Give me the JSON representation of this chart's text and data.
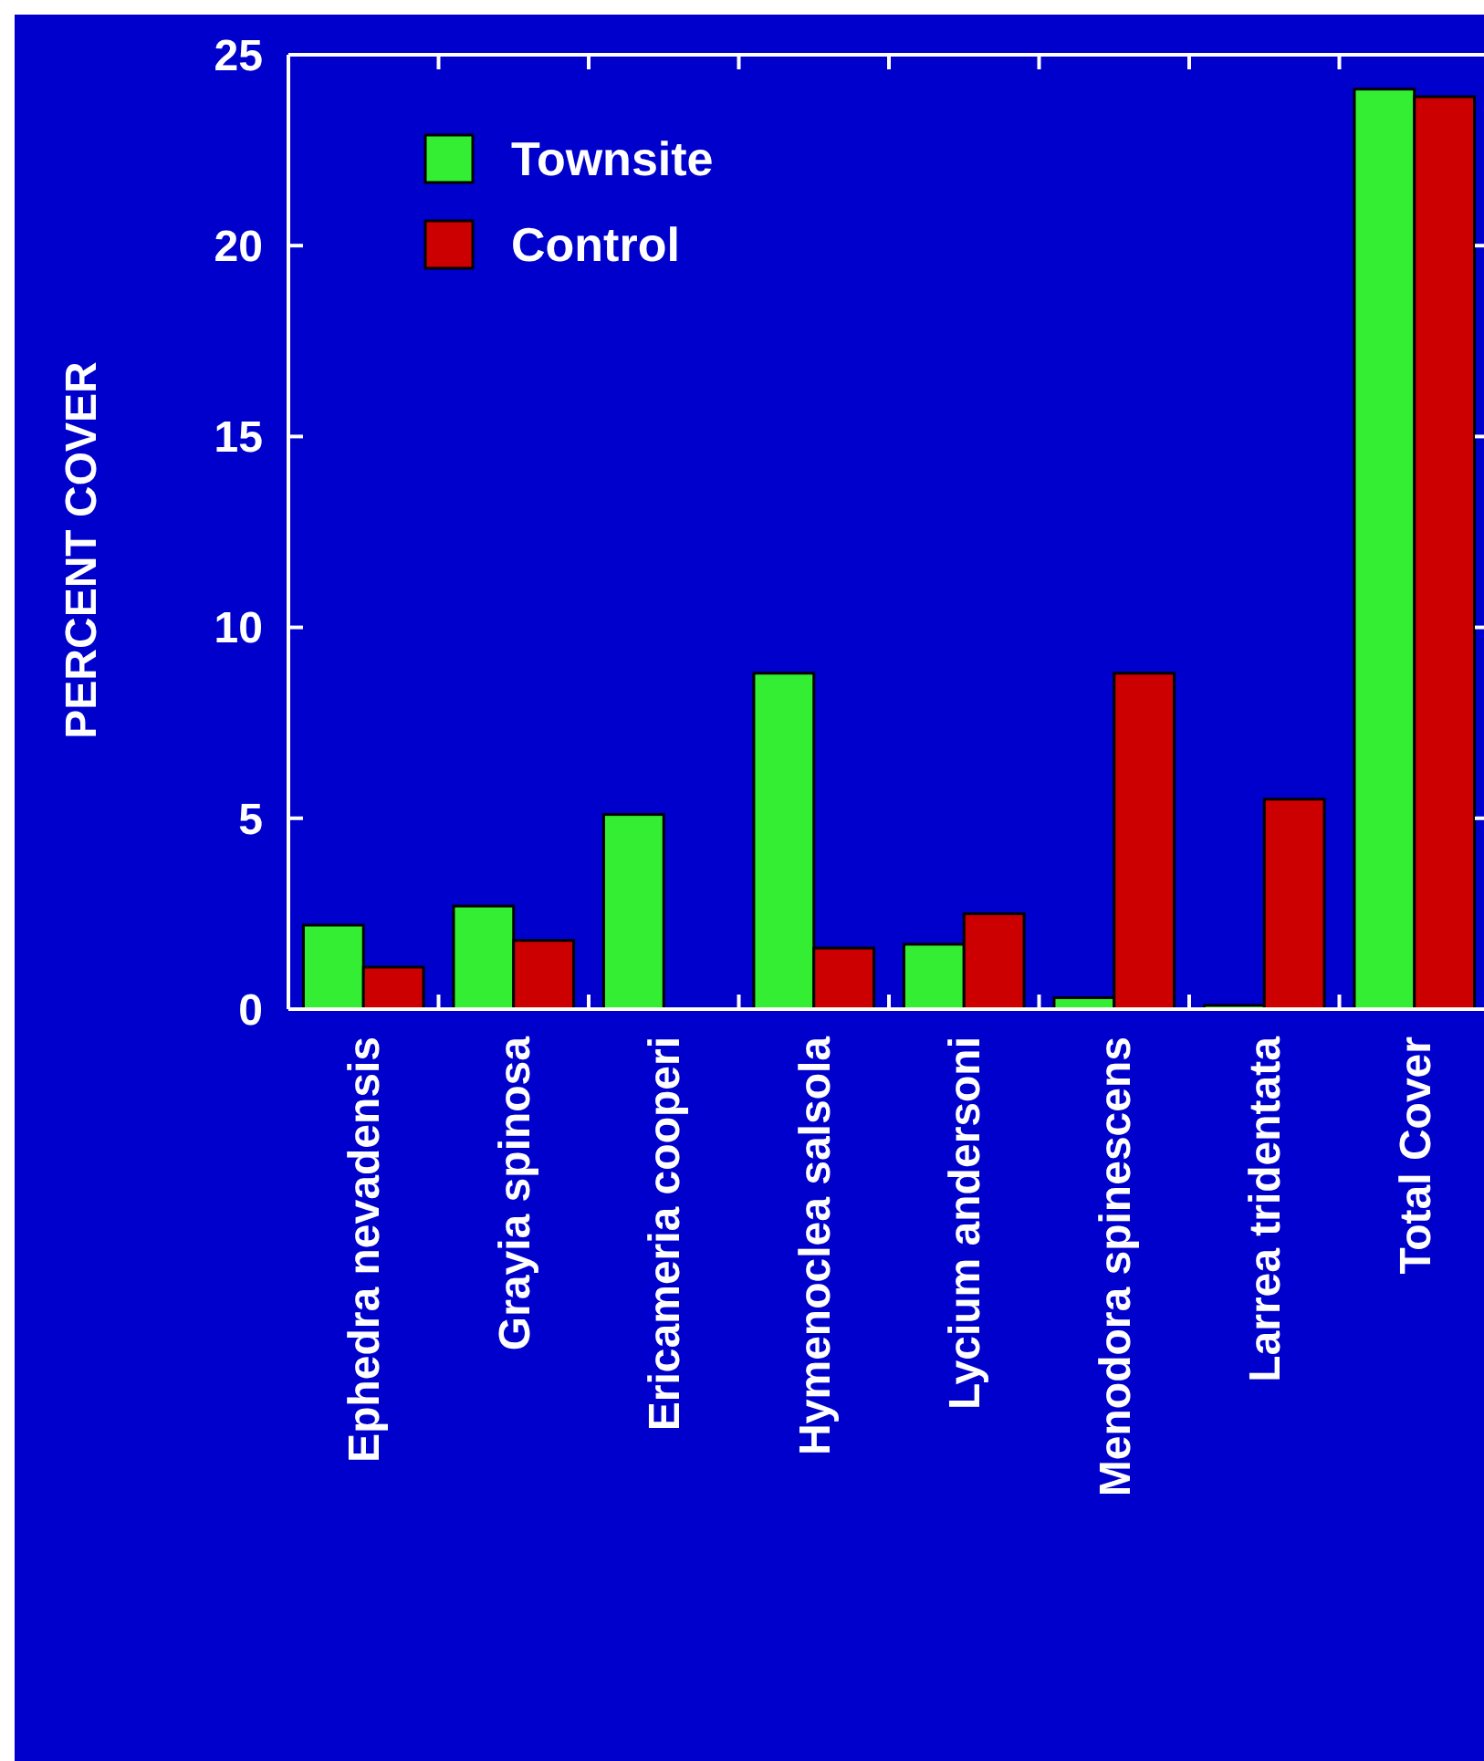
{
  "chart_data": {
    "type": "bar",
    "ylabel": "PERCENT COVER",
    "categories": [
      "Ephedra nevadensis",
      "Grayia spinosa",
      "Ericameria cooperi",
      "Hymenoclea salsola",
      "Lycium andersoni",
      "Menodora spinescens",
      "Larrea tridentata",
      "Total Cover"
    ],
    "series": [
      {
        "name": "Townsite",
        "color": "#33ee33",
        "values": [
          2.2,
          2.7,
          5.1,
          8.8,
          1.7,
          0.3,
          0.1,
          24.1
        ]
      },
      {
        "name": "Control",
        "color": "#cc0000",
        "values": [
          1.1,
          1.8,
          0,
          1.6,
          2.5,
          8.8,
          5.5,
          23.9
        ]
      }
    ],
    "ylim": [
      0,
      25
    ],
    "yticks": [
      0,
      5,
      10,
      15,
      20,
      25
    ],
    "legend": "top left",
    "grid": false
  }
}
